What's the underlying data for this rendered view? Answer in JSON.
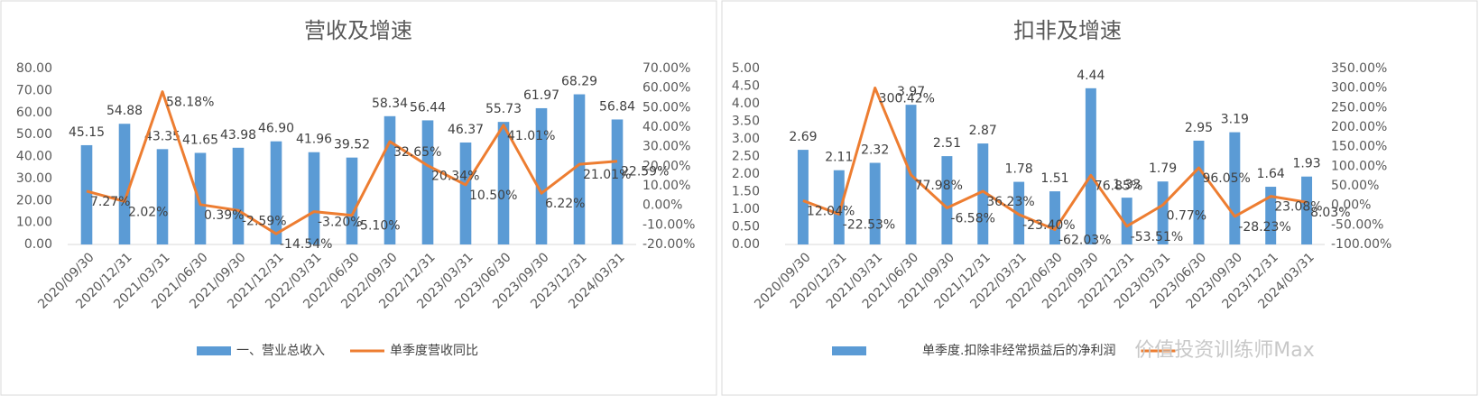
{
  "chart_data": [
    {
      "type": "bar",
      "title": "营收及增速",
      "categories": [
        "2020/09/30",
        "2020/12/31",
        "2021/03/31",
        "2021/06/30",
        "2021/09/30",
        "2021/12/31",
        "2022/03/31",
        "2022/06/30",
        "2022/09/30",
        "2022/12/31",
        "2023/03/31",
        "2023/06/30",
        "2023/09/30",
        "2023/12/31",
        "2024/03/31"
      ],
      "series": [
        {
          "name": "一、营业总收入",
          "type": "bar",
          "color": "#5b9bd5",
          "values": [
            45.15,
            54.88,
            43.35,
            41.65,
            43.98,
            46.9,
            41.96,
            39.52,
            58.34,
            56.44,
            46.37,
            55.73,
            61.97,
            68.29,
            56.84
          ],
          "value_labels": [
            "45.15",
            "54.88",
            "43.35",
            "41.65",
            "43.98",
            "46.90",
            "41.96",
            "39.52",
            "58.34",
            "56.44",
            "46.37",
            "55.73",
            "61.97",
            "68.29",
            "56.84"
          ]
        },
        {
          "name": "单季度营收同比",
          "type": "line",
          "axis": "y2",
          "color": "#ed7d31",
          "values": [
            7.27,
            2.02,
            58.18,
            0.39,
            -2.59,
            -14.54,
            -3.2,
            -5.1,
            32.65,
            20.34,
            10.5,
            41.01,
            6.22,
            21.01,
            22.59
          ],
          "value_labels": [
            "7.27%",
            "2.02%",
            "58.18%",
            "0.39%",
            "-2.59%",
            "-14.54%",
            "-3.20%",
            "-5.10%",
            "32.65%",
            "20.34%",
            "10.50%",
            "41.01%",
            "6.22%",
            "21.01%",
            "22.59%"
          ]
        }
      ],
      "ylim": [
        0,
        80
      ],
      "yticks": [
        {
          "value": 0,
          "label": "0.00"
        },
        {
          "value": 10,
          "label": "10.00"
        },
        {
          "value": 20,
          "label": "20.00"
        },
        {
          "value": 30,
          "label": "30.00"
        },
        {
          "value": 40,
          "label": "40.00"
        },
        {
          "value": 50,
          "label": "50.00"
        },
        {
          "value": 60,
          "label": "60.00"
        },
        {
          "value": 70,
          "label": "70.00"
        },
        {
          "value": 80,
          "label": "80.00"
        }
      ],
      "y2lim": [
        -20,
        70
      ],
      "y2ticks": [
        {
          "value": -20,
          "label": "-20.00%"
        },
        {
          "value": -10,
          "label": "-10.00%"
        },
        {
          "value": 0,
          "label": "0.00%"
        },
        {
          "value": 10,
          "label": "10.00%"
        },
        {
          "value": 20,
          "label": "20.00%"
        },
        {
          "value": 30,
          "label": "30.00%"
        },
        {
          "value": 40,
          "label": "40.00%"
        },
        {
          "value": 50,
          "label": "50.00%"
        },
        {
          "value": 60,
          "label": "60.00%"
        },
        {
          "value": 70,
          "label": "70.00%"
        }
      ],
      "legend": "bottom"
    },
    {
      "type": "bar",
      "title": "扣非及增速",
      "categories": [
        "2020/09/30",
        "2020/12/31",
        "2021/03/31",
        "2021/06/30",
        "2021/09/30",
        "2021/12/31",
        "2022/03/31",
        "2022/06/30",
        "2022/09/30",
        "2022/12/31",
        "2023/03/31",
        "2023/06/30",
        "2023/09/30",
        "2023/12/31",
        "2024/03/31"
      ],
      "series": [
        {
          "name": "单季度.扣除非经常损益后的净利润",
          "type": "bar",
          "color": "#5b9bd5",
          "values": [
            2.69,
            2.11,
            2.32,
            3.97,
            2.51,
            2.87,
            1.78,
            1.51,
            4.44,
            1.33,
            1.79,
            2.95,
            3.19,
            1.64,
            1.93
          ]
        },
        {
          "type": "line",
          "axis": "y2",
          "color": "#ed7d31",
          "values": [
            12.04,
            -22.53,
            300.42,
            77.98,
            -6.58,
            36.23,
            -23.4,
            -62.03,
            76.85,
            -53.51,
            0.77,
            96.05,
            -28.23,
            23.08,
            8.03
          ],
          "value_labels": [
            "12.04%",
            "-22.53%",
            "300.42%",
            "77.98%",
            "-6.58%",
            "36.23%",
            "-23.40%",
            "-62.03%",
            "76.85%",
            "-53.51%",
            "0.77%",
            "96.05%",
            "-28.23%",
            "23.08%",
            "8.03%"
          ]
        }
      ],
      "ylim": [
        0,
        5
      ],
      "yticks": [
        {
          "value": 0,
          "label": "0.00"
        },
        {
          "value": 0.5,
          "label": "0.50"
        },
        {
          "value": 1,
          "label": "1.00"
        },
        {
          "value": 1.5,
          "label": "1.50"
        },
        {
          "value": 2,
          "label": "2.00"
        },
        {
          "value": 2.5,
          "label": "2.50"
        },
        {
          "value": 3,
          "label": "3.00"
        },
        {
          "value": 3.5,
          "label": "3.50"
        },
        {
          "value": 4,
          "label": "4.00"
        },
        {
          "value": 4.5,
          "label": "4.50"
        },
        {
          "value": 5,
          "label": "5.00"
        }
      ],
      "y2lim": [
        -100,
        350
      ],
      "y2ticks": [
        {
          "value": -100,
          "label": "-100.00%"
        },
        {
          "value": -50,
          "label": "-50.00%"
        },
        {
          "value": 0,
          "label": "0.00%"
        },
        {
          "value": 50,
          "label": "50.00%"
        },
        {
          "value": 100,
          "label": "100.00%"
        },
        {
          "value": 150,
          "label": "150.00%"
        },
        {
          "value": 200,
          "label": "200.00%"
        },
        {
          "value": 250,
          "label": "250.00%"
        },
        {
          "value": 300,
          "label": "300.00%"
        },
        {
          "value": 350,
          "label": "350.00%"
        }
      ],
      "legend": "bottom",
      "watermark": "价值投资训练师Max"
    }
  ]
}
